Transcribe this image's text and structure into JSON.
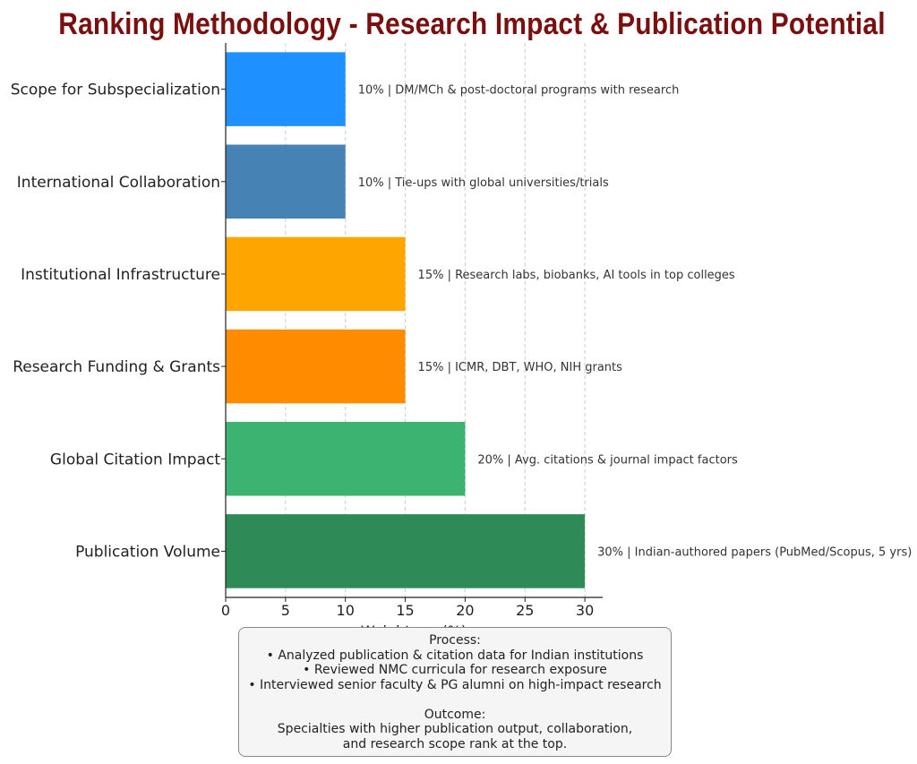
{
  "chart_data": {
    "type": "bar",
    "orientation": "horizontal",
    "title": "Ranking Methodology - Research Impact & Publication Potential",
    "xlabel": "Weightage (%)",
    "ylabel": "",
    "xlim": [
      0,
      31.5
    ],
    "xticks": [
      0,
      5,
      10,
      15,
      20,
      25,
      30
    ],
    "grid": "vertical dashed",
    "categories": [
      "Scope for Subspecialization",
      "International Collaboration",
      "Institutional Infrastructure",
      "Research Funding & Grants",
      "Global Citation Impact",
      "Publication Volume"
    ],
    "values": [
      10,
      10,
      15,
      15,
      20,
      30
    ],
    "colors": [
      "#1e90ff",
      "#4682b4",
      "#ffa500",
      "#ff8c00",
      "#3cb371",
      "#2e8b57"
    ],
    "data_labels": [
      "10% | DM/MCh & post-doctoral programs with research",
      "10% | Tie-ups with global universities/trials",
      "15% | Research labs, biobanks, AI tools in top colleges",
      "15% | ICMR, DBT, WHO, NIH grants",
      "20% | Avg. citations & journal impact factors",
      "30% | Indian-authored papers (PubMed/Scopus, 5 yrs)"
    ]
  },
  "process_box": {
    "heading": "Process:",
    "items": [
      "• Analyzed publication & citation data for Indian institutions",
      "• Reviewed NMC curricula for research exposure",
      "• Interviewed senior faculty & PG alumni on high-impact research"
    ],
    "outcome_heading": "Outcome:",
    "outcome_lines": [
      "Specialties with higher publication output, collaboration,",
      "and research scope rank at the top."
    ]
  }
}
